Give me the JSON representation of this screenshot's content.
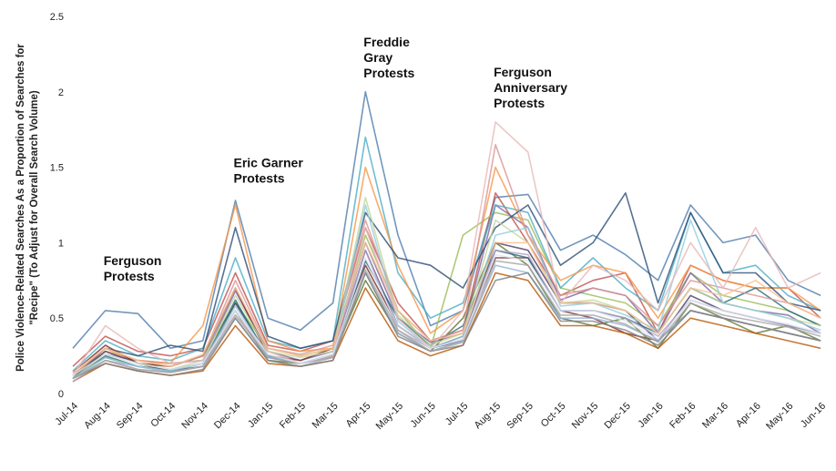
{
  "chart_data": {
    "type": "line",
    "ylabel_lines": [
      "Police Violence-Related Searches As a Proportion of Searches for",
      "\"Recipe\" (To Adjust for Overall Search Volume)"
    ],
    "ylim": [
      0,
      2.5
    ],
    "yticks": [
      "0",
      "0.5",
      "1",
      "1.5",
      "2",
      "2.5"
    ],
    "grid": false,
    "categories": [
      "Jul-14",
      "Aug-14",
      "Sep-14",
      "Oct-14",
      "Nov-14",
      "Dec-14",
      "Jan-15",
      "Feb-15",
      "Mar-15",
      "Apr-15",
      "May-15",
      "Jun-15",
      "Jul-15",
      "Aug-15",
      "Sep-15",
      "Oct-15",
      "Nov-15",
      "Dec-15",
      "Jan-16",
      "Feb-16",
      "Mar-16",
      "Apr-16",
      "May-16",
      "Jun-16"
    ],
    "annotations": [
      {
        "lines": [
          "Ferguson",
          "Protests"
        ],
        "category_index": 1,
        "y": 0.85
      },
      {
        "lines": [
          "Eric Garner",
          "Protests"
        ],
        "category_index": 5,
        "y": 1.5
      },
      {
        "lines": [
          "Freddie",
          "Gray",
          "Protests"
        ],
        "category_index": 9,
        "y": 2.3
      },
      {
        "lines": [
          "Ferguson",
          "Anniversary",
          "Protests"
        ],
        "category_index": 13,
        "y": 2.1
      }
    ],
    "colors": [
      "#4f7cac",
      "#c0504d",
      "#9bbb59",
      "#8064a2",
      "#4bacc6",
      "#f79646",
      "#2c4d75",
      "#772c2a",
      "#5f7530",
      "#4d3b62",
      "#276a7c",
      "#b65708",
      "#95b3d7",
      "#d99694",
      "#c3d69b",
      "#b3a2c7",
      "#93cddd",
      "#fac090",
      "#7f7f7f",
      "#e6b9b8",
      "#a5a5a5",
      "#dbe5f1"
    ],
    "series": [
      {
        "values": [
          0.3,
          0.55,
          0.53,
          0.3,
          0.35,
          1.28,
          0.5,
          0.42,
          0.6,
          2.0,
          1.05,
          0.45,
          0.55,
          1.3,
          1.32,
          0.95,
          1.05,
          0.92,
          0.75,
          1.25,
          1.0,
          1.05,
          0.75,
          0.65
        ]
      },
      {
        "values": [
          0.18,
          0.38,
          0.28,
          0.25,
          0.3,
          0.8,
          0.32,
          0.28,
          0.35,
          1.1,
          0.6,
          0.35,
          0.42,
          1.33,
          1.0,
          0.65,
          0.75,
          0.8,
          0.4,
          0.85,
          0.75,
          0.7,
          0.7,
          0.5
        ]
      },
      {
        "values": [
          0.12,
          0.3,
          0.2,
          0.18,
          0.25,
          0.6,
          0.3,
          0.25,
          0.3,
          1.05,
          0.55,
          0.3,
          1.05,
          1.2,
          1.15,
          0.7,
          0.65,
          0.6,
          0.45,
          0.8,
          0.65,
          0.6,
          0.55,
          0.45
        ]
      },
      {
        "values": [
          0.1,
          0.26,
          0.22,
          0.2,
          0.22,
          0.68,
          0.28,
          0.22,
          0.28,
          1.0,
          0.5,
          0.34,
          0.4,
          1.25,
          1.1,
          0.62,
          0.7,
          0.65,
          0.4,
          0.8,
          0.6,
          0.55,
          0.52,
          0.4
        ]
      },
      {
        "values": [
          0.15,
          0.35,
          0.25,
          0.22,
          0.3,
          0.9,
          0.35,
          0.3,
          0.35,
          1.7,
          0.8,
          0.5,
          0.6,
          1.25,
          1.2,
          0.7,
          0.9,
          0.7,
          0.55,
          1.2,
          0.8,
          0.85,
          0.65,
          0.55
        ]
      },
      {
        "values": [
          0.12,
          0.28,
          0.22,
          0.2,
          0.45,
          1.25,
          0.35,
          0.28,
          0.3,
          1.5,
          0.85,
          0.4,
          0.55,
          1.5,
          1.05,
          0.75,
          0.85,
          0.8,
          0.5,
          0.85,
          0.75,
          0.7,
          0.7,
          0.55
        ]
      },
      {
        "values": [
          0.1,
          0.3,
          0.25,
          0.32,
          0.28,
          1.1,
          0.38,
          0.3,
          0.35,
          1.2,
          0.9,
          0.85,
          0.7,
          1.1,
          1.25,
          0.85,
          1.0,
          1.33,
          0.6,
          1.2,
          0.8,
          0.8,
          0.6,
          0.55
        ]
      },
      {
        "values": [
          0.14,
          0.32,
          0.2,
          0.18,
          0.25,
          0.7,
          0.25,
          0.22,
          0.3,
          0.85,
          0.45,
          0.3,
          0.38,
          0.9,
          0.9,
          0.55,
          0.5,
          0.4,
          0.35,
          0.55,
          0.5,
          0.45,
          0.4,
          0.35
        ]
      },
      {
        "values": [
          0.12,
          0.24,
          0.18,
          0.16,
          0.2,
          0.55,
          0.22,
          0.2,
          0.25,
          0.75,
          0.4,
          0.28,
          0.5,
          1.0,
          0.85,
          0.5,
          0.45,
          0.5,
          0.3,
          0.6,
          0.5,
          0.4,
          0.45,
          0.35
        ]
      },
      {
        "values": [
          0.1,
          0.28,
          0.2,
          0.15,
          0.18,
          0.6,
          0.25,
          0.2,
          0.25,
          0.95,
          0.45,
          0.3,
          0.35,
          1.0,
          0.95,
          0.6,
          0.6,
          0.55,
          0.35,
          0.65,
          0.55,
          0.5,
          0.45,
          0.4
        ]
      },
      {
        "values": [
          0.1,
          0.25,
          0.18,
          0.15,
          0.2,
          0.62,
          0.24,
          0.2,
          0.26,
          0.88,
          0.5,
          0.32,
          0.45,
          0.95,
          0.9,
          0.55,
          0.55,
          0.5,
          0.4,
          0.7,
          0.6,
          0.7,
          0.55,
          0.45
        ]
      },
      {
        "values": [
          0.08,
          0.2,
          0.15,
          0.12,
          0.15,
          0.45,
          0.2,
          0.18,
          0.22,
          0.7,
          0.35,
          0.25,
          0.32,
          0.8,
          0.75,
          0.45,
          0.45,
          0.4,
          0.3,
          0.5,
          0.45,
          0.4,
          0.35,
          0.3
        ]
      },
      {
        "values": [
          0.1,
          0.22,
          0.16,
          0.14,
          0.18,
          0.5,
          0.22,
          0.18,
          0.24,
          0.8,
          0.4,
          0.28,
          0.35,
          0.85,
          0.8,
          0.5,
          0.5,
          0.45,
          0.35,
          0.55,
          0.5,
          0.45,
          0.4,
          0.35
        ]
      },
      {
        "values": [
          0.12,
          0.3,
          0.22,
          0.18,
          0.25,
          0.75,
          0.3,
          0.26,
          0.32,
          1.15,
          0.55,
          0.35,
          0.42,
          1.65,
          1.05,
          0.65,
          0.7,
          0.65,
          0.45,
          0.75,
          0.7,
          0.65,
          0.6,
          0.5
        ]
      },
      {
        "values": [
          0.1,
          0.26,
          0.2,
          0.16,
          0.22,
          0.65,
          0.28,
          0.24,
          0.28,
          1.3,
          0.52,
          0.32,
          0.4,
          1.15,
          1.0,
          0.6,
          0.62,
          0.55,
          0.4,
          0.7,
          0.6,
          0.55,
          0.5,
          0.45
        ]
      },
      {
        "values": [
          0.08,
          0.22,
          0.18,
          0.14,
          0.18,
          0.55,
          0.24,
          0.2,
          0.24,
          0.95,
          0.42,
          0.3,
          0.36,
          0.95,
          0.92,
          0.55,
          0.55,
          0.5,
          0.38,
          0.62,
          0.55,
          0.5,
          0.45,
          0.4
        ]
      },
      {
        "values": [
          0.1,
          0.24,
          0.18,
          0.15,
          0.2,
          0.58,
          0.25,
          0.2,
          0.26,
          1.25,
          0.48,
          0.3,
          0.38,
          1.05,
          1.1,
          0.58,
          0.6,
          0.52,
          0.42,
          1.15,
          0.6,
          0.55,
          0.5,
          0.42
        ]
      },
      {
        "values": [
          0.14,
          0.3,
          0.22,
          0.18,
          0.26,
          0.7,
          0.3,
          0.25,
          0.3,
          1.0,
          0.55,
          0.35,
          0.4,
          1.0,
          1.0,
          0.6,
          0.6,
          0.55,
          0.4,
          0.7,
          0.65,
          0.75,
          0.6,
          0.5
        ]
      },
      {
        "values": [
          0.1,
          0.2,
          0.15,
          0.12,
          0.16,
          0.5,
          0.22,
          0.18,
          0.22,
          0.8,
          0.38,
          0.28,
          0.32,
          0.75,
          0.8,
          0.48,
          0.48,
          0.42,
          0.32,
          0.55,
          0.5,
          0.45,
          0.4,
          0.35
        ]
      },
      {
        "values": [
          0.12,
          0.45,
          0.3,
          0.2,
          0.22,
          0.52,
          0.28,
          0.2,
          0.25,
          1.1,
          0.5,
          0.3,
          0.55,
          1.8,
          1.6,
          0.6,
          0.85,
          0.75,
          0.55,
          1.0,
          0.7,
          1.1,
          0.7,
          0.8
        ]
      },
      {
        "values": [
          0.1,
          0.22,
          0.16,
          0.14,
          0.18,
          0.52,
          0.24,
          0.2,
          0.24,
          0.82,
          0.42,
          0.28,
          0.34,
          0.88,
          0.85,
          0.52,
          0.52,
          0.46,
          0.34,
          0.6,
          0.52,
          0.48,
          0.44,
          0.38
        ]
      },
      {
        "values": [
          0.12,
          0.26,
          0.2,
          0.16,
          0.2,
          0.55,
          0.26,
          0.2,
          0.26,
          0.9,
          0.45,
          0.3,
          0.36,
          0.92,
          0.88,
          0.55,
          0.55,
          0.48,
          0.36,
          0.62,
          0.55,
          0.5,
          0.46,
          0.4
        ]
      }
    ]
  }
}
